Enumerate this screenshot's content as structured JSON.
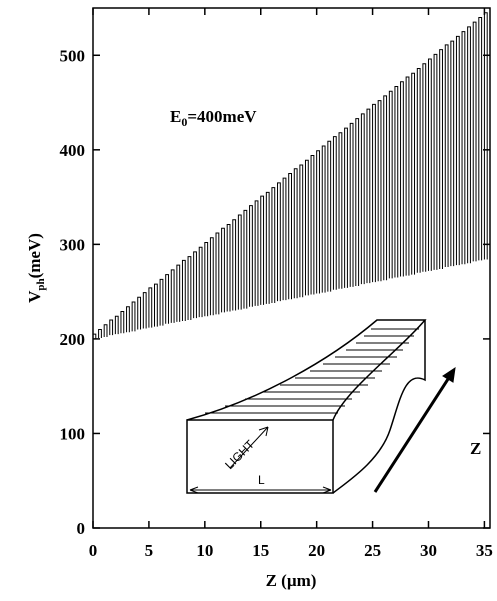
{
  "chart_data": {
    "type": "comb",
    "ylabel": {
      "main": "V",
      "sub": "ph",
      "unit": "(meV)"
    },
    "xlabel": "Z (µm)",
    "annotation": {
      "main": "E",
      "sub": "0",
      "rest": "=400meV"
    },
    "inset_labels": {
      "light": "LIGHT",
      "length": "L",
      "axis": "Z"
    },
    "xlim": [
      0,
      35.5
    ],
    "ylim": [
      0,
      550
    ],
    "xticks": [
      0,
      5,
      10,
      15,
      20,
      25,
      30,
      35
    ],
    "yticks": [
      0,
      100,
      200,
      300,
      400,
      500
    ],
    "color": "#000000",
    "x": [
      0,
      0.5,
      1,
      1.5,
      2,
      2.5,
      3,
      3.5,
      4,
      4.5,
      5,
      5.5,
      6,
      6.5,
      7,
      7.5,
      8,
      8.5,
      9,
      9.5,
      10,
      10.5,
      11,
      11.5,
      12,
      12.5,
      13,
      13.5,
      14,
      14.5,
      15,
      15.5,
      16,
      16.5,
      17,
      17.5,
      18,
      18.5,
      19,
      19.5,
      20,
      20.5,
      21,
      21.5,
      22,
      22.5,
      23,
      23.5,
      24,
      24.5,
      25,
      25.5,
      26,
      26.5,
      27,
      27.5,
      28,
      28.5,
      29,
      29.5,
      30,
      30.5,
      31,
      31.5,
      32,
      32.5,
      33,
      33.5,
      34,
      34.5,
      35
    ],
    "series": [
      {
        "values": [
          200,
          201,
          202,
          204,
          205,
          206,
          207,
          208,
          210,
          211,
          212,
          213,
          214,
          216,
          217,
          218,
          219,
          220,
          222,
          223,
          224,
          225,
          226,
          228,
          229,
          230,
          231,
          232,
          234,
          235,
          236,
          237,
          238,
          240,
          241,
          242,
          243,
          244,
          246,
          247,
          248,
          249,
          250,
          252,
          253,
          254,
          255,
          256,
          258,
          259,
          260,
          261,
          262,
          264,
          265,
          266,
          267,
          268,
          270,
          271,
          272,
          273,
          274,
          276,
          277,
          278,
          279,
          280,
          282,
          283,
          284
        ]
      },
      {
        "values": [
          205,
          210,
          215,
          220,
          224,
          229,
          234,
          239,
          244,
          249,
          254,
          258,
          263,
          268,
          273,
          278,
          283,
          287,
          292,
          297,
          302,
          307,
          312,
          317,
          321,
          326,
          331,
          336,
          341,
          346,
          351,
          355,
          360,
          365,
          370,
          375,
          380,
          384,
          389,
          394,
          399,
          404,
          409,
          414,
          418,
          423,
          428,
          433,
          438,
          443,
          448,
          452,
          457,
          462,
          467,
          472,
          477,
          481,
          486,
          491,
          496,
          501,
          506,
          511,
          515,
          520,
          525,
          530,
          535,
          540,
          545
        ]
      }
    ]
  }
}
